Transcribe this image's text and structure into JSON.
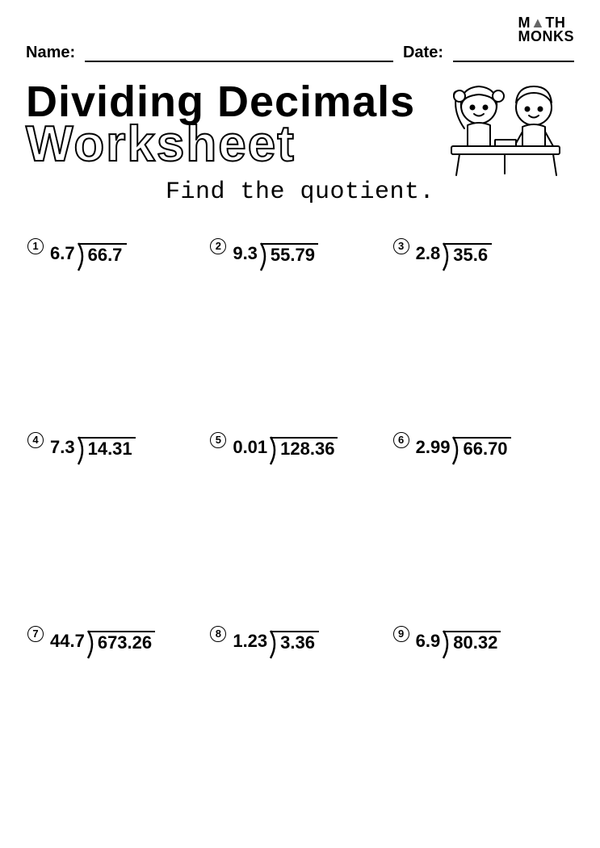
{
  "logo": {
    "line1": "M▲TH",
    "line2": "MONKS"
  },
  "header": {
    "name_label": "Name:",
    "date_label": "Date:"
  },
  "title": {
    "line1": "Dividing Decimals",
    "line2": "Worksheet"
  },
  "instruction": "Find the quotient.",
  "problems": [
    {
      "n": "1",
      "divisor": "6.7",
      "dividend": "66.7"
    },
    {
      "n": "2",
      "divisor": "9.3",
      "dividend": "55.79"
    },
    {
      "n": "3",
      "divisor": "2.8",
      "dividend": "35.6"
    },
    {
      "n": "4",
      "divisor": "7.3",
      "dividend": "14.31"
    },
    {
      "n": "5",
      "divisor": "0.01",
      "dividend": "128.36"
    },
    {
      "n": "6",
      "divisor": "2.99",
      "dividend": "66.70"
    },
    {
      "n": "7",
      "divisor": "44.7",
      "dividend": "673.26"
    },
    {
      "n": "8",
      "divisor": "1.23",
      "dividend": "3.36"
    },
    {
      "n": "9",
      "divisor": "6.9",
      "dividend": "80.32"
    }
  ],
  "style": {
    "page_bg": "#ffffff",
    "text_color": "#000000",
    "problem_fontsize": 22,
    "title1_fontsize": 54,
    "title2_fontsize": 62,
    "instruction_fontsize": 30
  }
}
